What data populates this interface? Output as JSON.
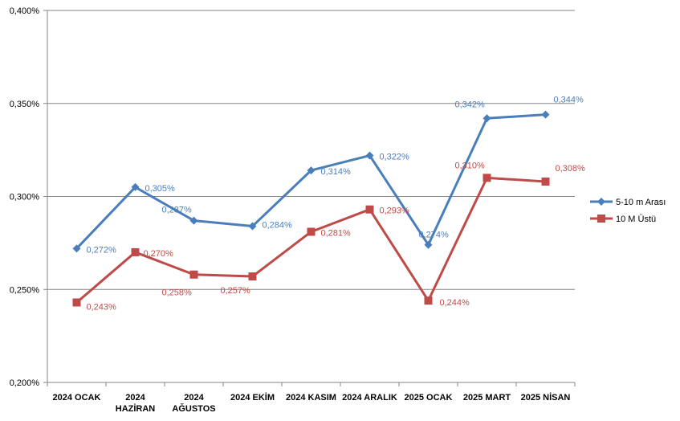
{
  "chart_data": {
    "type": "line",
    "categories": [
      [
        "2024 OCAK"
      ],
      [
        "2024",
        "HAZİRAN"
      ],
      [
        "2024",
        "AĞUSTOS"
      ],
      [
        "2024 EKİM"
      ],
      [
        "2024 KASIM"
      ],
      [
        "2024 ARALIK"
      ],
      [
        "2025 OCAK"
      ],
      [
        "2025 MART"
      ],
      [
        "2025 NİSAN"
      ]
    ],
    "series": [
      {
        "name": "5-10 m Arası",
        "color": "#4a7ebb",
        "marker": "diamond",
        "values": [
          0.272,
          0.305,
          0.287,
          0.284,
          0.314,
          0.322,
          0.274,
          0.342,
          0.344
        ],
        "labels": [
          "0,272%",
          "0,305%",
          "0,287%",
          "0,284%",
          "0,314%",
          "0,322%",
          "0,274%",
          "0,342%",
          "0,344%"
        ]
      },
      {
        "name": "10 M Üstü",
        "color": "#be4b48",
        "marker": "square",
        "values": [
          0.243,
          0.27,
          0.258,
          0.257,
          0.281,
          0.293,
          0.244,
          0.31,
          0.308
        ],
        "labels": [
          "0,243%",
          "0,270%",
          "0,258%",
          "0,257%",
          "0,281%",
          "0,293%",
          "0,244%",
          "0,310%",
          "0,308%"
        ]
      }
    ],
    "ylim": [
      0.2,
      0.4
    ],
    "yticks": [
      0.2,
      0.25,
      0.3,
      0.35,
      0.4
    ],
    "ytick_labels": [
      "0,200%",
      "0,250%",
      "0,300%",
      "0,350%",
      "0,400%"
    ],
    "grid": true,
    "legend": "right"
  }
}
